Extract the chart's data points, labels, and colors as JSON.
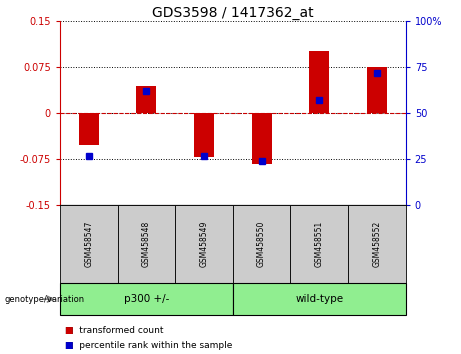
{
  "title": "GDS3598 / 1417362_at",
  "samples": [
    "GSM458547",
    "GSM458548",
    "GSM458549",
    "GSM458550",
    "GSM458551",
    "GSM458552"
  ],
  "red_values": [
    -0.052,
    0.045,
    -0.071,
    -0.082,
    0.102,
    0.076
  ],
  "blue_percentiles": [
    27,
    62,
    27,
    24,
    57,
    72
  ],
  "group_defs": [
    {
      "start": 0,
      "end": 2,
      "label": "p300 +/-",
      "color": "#90EE90"
    },
    {
      "start": 3,
      "end": 5,
      "label": "wild-type",
      "color": "#90EE90"
    }
  ],
  "ylim_left": [
    -0.15,
    0.15
  ],
  "ylim_right": [
    0,
    100
  ],
  "yticks_left": [
    -0.15,
    -0.075,
    0,
    0.075,
    0.15
  ],
  "yticks_right": [
    0,
    25,
    50,
    75,
    100
  ],
  "left_color": "#CC0000",
  "right_color": "#0000CC",
  "bar_width": 0.35,
  "blue_marker_size": 4,
  "title_fontsize": 10,
  "tick_fontsize": 7,
  "sample_fontsize": 5.5,
  "group_fontsize": 7.5,
  "legend_fontsize": 6.5,
  "gray_color": "#cccccc",
  "plot_bg": "#ffffff"
}
